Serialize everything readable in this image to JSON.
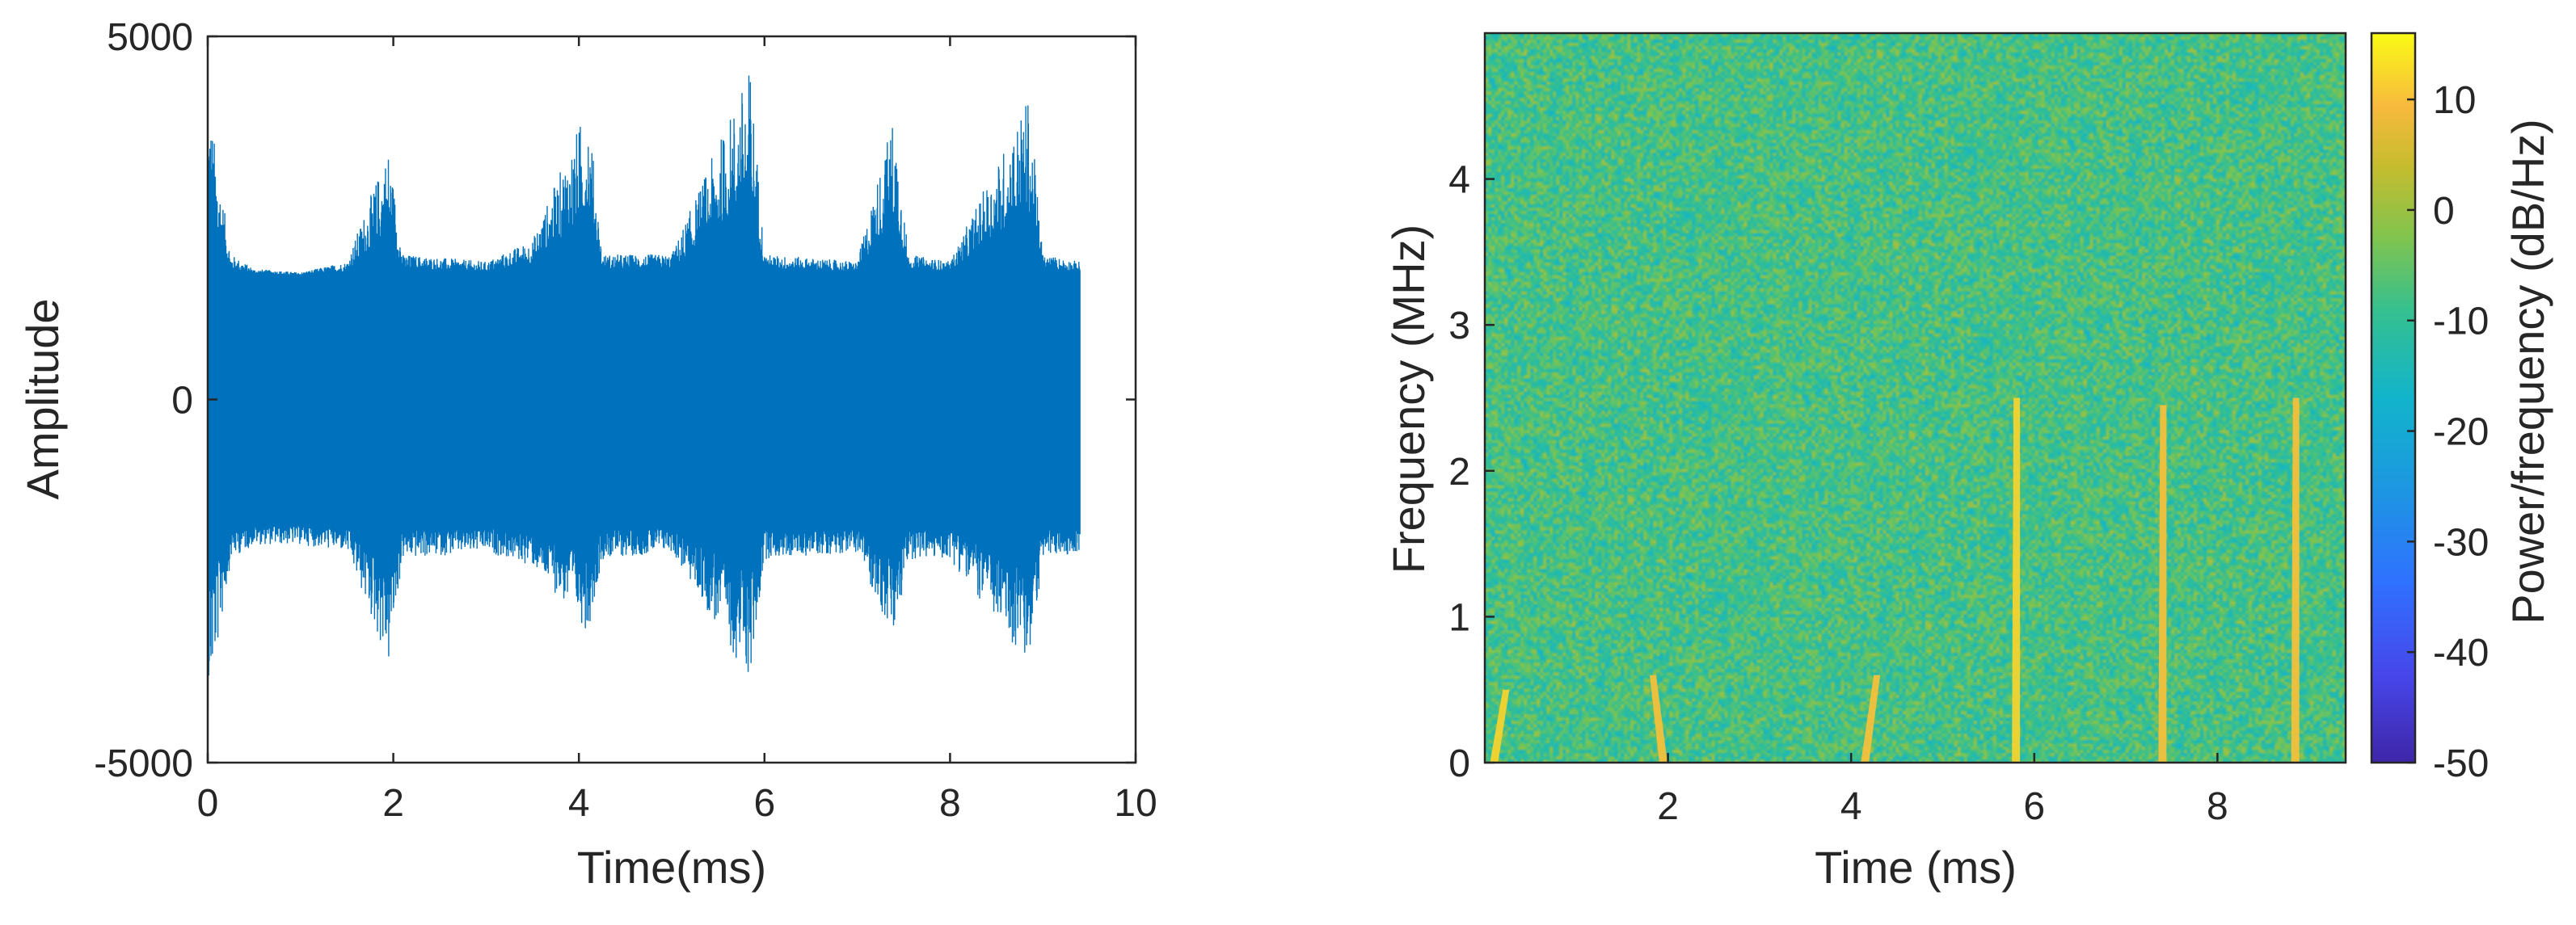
{
  "colors": {
    "signal": "#0072BD",
    "axis": "#262626",
    "background": "#ffffff",
    "colormap": "parula"
  },
  "chart_data": [
    {
      "type": "line",
      "xlabel": "Time(ms)",
      "ylabel": "Amplitude",
      "xlim": [
        0,
        10
      ],
      "ylim": [
        -5000,
        5000
      ],
      "xticks": [
        0,
        2,
        4,
        6,
        8,
        10
      ],
      "xtick_labels": [
        "0",
        "2",
        "4",
        "6",
        "8",
        "10"
      ],
      "yticks": [
        -5000,
        0,
        5000
      ],
      "ytick_labels": [
        "-5000",
        "0",
        "5000"
      ],
      "grid": false,
      "series": [
        {
          "x_range": [
            0,
            9.4
          ],
          "envelope_upper": [
            [
              0,
              4300
            ],
            [
              0.1,
              3300
            ],
            [
              0.25,
              2000
            ],
            [
              0.5,
              1800
            ],
            [
              1,
              1750
            ],
            [
              1.5,
              1900
            ],
            [
              1.95,
              3500
            ],
            [
              2.1,
              2000
            ],
            [
              3,
              1900
            ],
            [
              3.5,
              2200
            ],
            [
              4.1,
              4100
            ],
            [
              4.25,
              2000
            ],
            [
              5,
              2000
            ],
            [
              5.85,
              4600
            ],
            [
              6,
              2000
            ],
            [
              7,
              1900
            ],
            [
              7.4,
              4000
            ],
            [
              7.55,
              2000
            ],
            [
              8,
              1900
            ],
            [
              8.85,
              4200
            ],
            [
              9,
              2000
            ],
            [
              9.4,
              1900
            ]
          ],
          "envelope_lower": [
            [
              0,
              -4300
            ],
            [
              0.1,
              -3500
            ],
            [
              0.25,
              -2200
            ],
            [
              0.5,
              -2000
            ],
            [
              1,
              -2000
            ],
            [
              1.5,
              -2100
            ],
            [
              1.95,
              -3700
            ],
            [
              2.1,
              -2200
            ],
            [
              3,
              -2100
            ],
            [
              3.5,
              -2300
            ],
            [
              4.1,
              -3200
            ],
            [
              4.25,
              -2200
            ],
            [
              5,
              -2100
            ],
            [
              5.85,
              -3900
            ],
            [
              6,
              -2200
            ],
            [
              7,
              -2100
            ],
            [
              7.4,
              -3400
            ],
            [
              7.55,
              -2200
            ],
            [
              8,
              -2200
            ],
            [
              8.85,
              -3700
            ],
            [
              9,
              -2200
            ],
            [
              9.4,
              -2100
            ]
          ],
          "noise_band": [
            -1600,
            1700
          ]
        }
      ]
    },
    {
      "type": "heatmap",
      "xlabel": "Time (ms)",
      "ylabel": "Frequency (MHz)",
      "xlim": [
        0,
        9.4
      ],
      "ylim": [
        0,
        5
      ],
      "xticks": [
        2,
        4,
        6,
        8
      ],
      "xtick_labels": [
        "2",
        "4",
        "6",
        "8"
      ],
      "yticks": [
        0,
        1,
        2,
        3,
        4
      ],
      "ytick_labels": [
        "0",
        "1",
        "2",
        "3",
        "4"
      ],
      "colorbar": {
        "label": "Power/frequency (dB/Hz)",
        "range": [
          -50,
          16
        ],
        "ticks": [
          10,
          0,
          -10,
          -20,
          -30,
          -40,
          -50
        ],
        "tick_labels": [
          "10",
          "0",
          "-10",
          "-20",
          "-30",
          "-40",
          "-50"
        ]
      },
      "background_level_db": -8,
      "events": [
        {
          "time_ms": 0.1,
          "freq_max_mhz": 0.5,
          "level_db": 12,
          "slope": 1
        },
        {
          "time_ms": 1.95,
          "freq_max_mhz": 0.6,
          "level_db": 10,
          "slope": -1
        },
        {
          "time_ms": 4.15,
          "freq_max_mhz": 0.6,
          "level_db": 10,
          "slope": 1
        },
        {
          "time_ms": 5.8,
          "freq_max_mhz": 2.5,
          "level_db": 12,
          "slope": 0
        },
        {
          "time_ms": 7.4,
          "freq_max_mhz": 2.45,
          "level_db": 10,
          "slope": 0
        },
        {
          "time_ms": 8.85,
          "freq_max_mhz": 2.5,
          "level_db": 10,
          "slope": 0
        }
      ]
    }
  ]
}
